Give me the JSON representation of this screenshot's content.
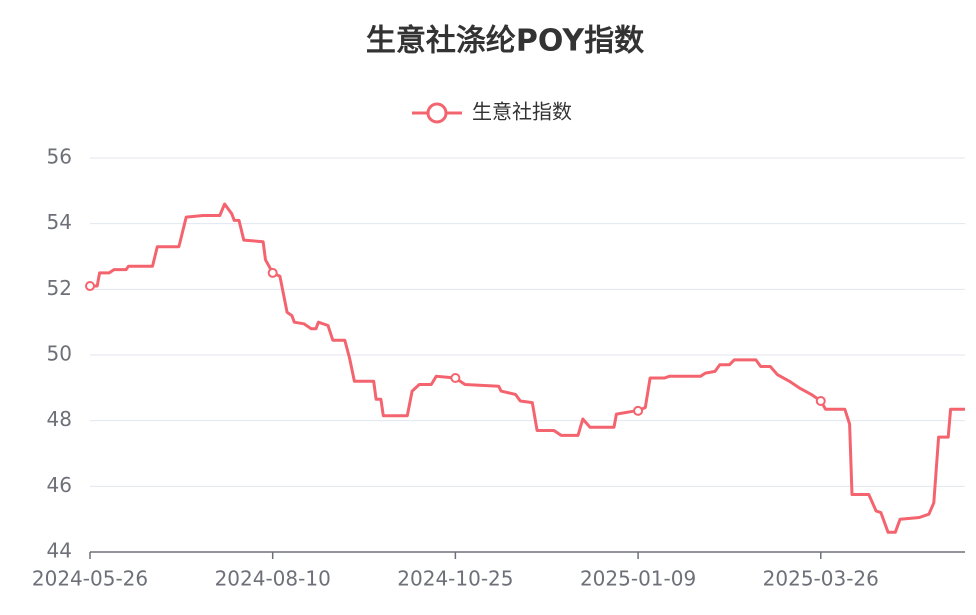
{
  "chart_data": {
    "type": "line",
    "title": "生意社涤纶POY指数",
    "x": [
      "2024-05-26",
      "2024-05-29",
      "2024-05-30",
      "2024-06-03",
      "2024-06-05",
      "2024-06-10",
      "2024-06-11",
      "2024-06-21",
      "2024-06-23",
      "2024-07-02",
      "2024-07-05",
      "2024-07-12",
      "2024-07-19",
      "2024-07-21",
      "2024-07-24",
      "2024-07-25",
      "2024-07-27",
      "2024-07-29",
      "2024-08-06",
      "2024-08-07",
      "2024-08-10",
      "2024-08-13",
      "2024-08-16",
      "2024-08-18",
      "2024-08-19",
      "2024-08-23",
      "2024-08-26",
      "2024-08-28",
      "2024-08-29",
      "2024-09-02",
      "2024-09-04",
      "2024-09-09",
      "2024-09-11",
      "2024-09-13",
      "2024-09-21",
      "2024-09-22",
      "2024-09-24",
      "2024-09-25",
      "2024-10-05",
      "2024-10-07",
      "2024-10-10",
      "2024-10-15",
      "2024-10-17",
      "2024-10-25",
      "2024-10-29",
      "2024-11-12",
      "2024-11-13",
      "2024-11-19",
      "2024-11-21",
      "2024-11-26",
      "2024-11-28",
      "2024-12-05",
      "2024-12-08",
      "2024-12-15",
      "2024-12-17",
      "2024-12-20",
      "2024-12-30",
      "2024-12-31",
      "2025-01-08",
      "2025-01-09",
      "2025-01-12",
      "2025-01-14",
      "2025-01-20",
      "2025-01-22",
      "2025-02-04",
      "2025-02-06",
      "2025-02-10",
      "2025-02-12",
      "2025-02-16",
      "2025-02-18",
      "2025-02-27",
      "2025-03-01",
      "2025-03-05",
      "2025-03-08",
      "2025-03-13",
      "2025-03-17",
      "2025-03-22",
      "2025-03-26",
      "2025-03-28",
      "2025-04-05",
      "2025-04-07",
      "2025-04-08",
      "2025-04-15",
      "2025-04-18",
      "2025-04-20",
      "2025-04-23",
      "2025-04-26",
      "2025-04-28",
      "2025-05-06",
      "2025-05-10",
      "2025-05-12",
      "2025-05-14",
      "2025-05-18",
      "2025-05-19",
      "2025-05-25"
    ],
    "series": [
      {
        "name": "生意社指数",
        "color": "#f4646f",
        "values": [
          52.1,
          52.1,
          52.5,
          52.5,
          52.6,
          52.6,
          52.7,
          52.7,
          53.3,
          53.3,
          54.2,
          54.25,
          54.25,
          54.6,
          54.3,
          54.1,
          54.1,
          53.5,
          53.45,
          52.9,
          52.5,
          52.4,
          51.3,
          51.2,
          51.0,
          50.95,
          50.8,
          50.8,
          51.0,
          50.9,
          50.45,
          50.45,
          49.9,
          49.2,
          49.2,
          48.65,
          48.65,
          48.15,
          48.15,
          48.9,
          49.1,
          49.1,
          49.35,
          49.3,
          49.1,
          49.05,
          48.9,
          48.8,
          48.6,
          48.55,
          47.7,
          47.7,
          47.55,
          47.55,
          48.05,
          47.8,
          47.8,
          48.2,
          48.3,
          48.3,
          48.4,
          49.3,
          49.3,
          49.35,
          49.35,
          49.45,
          49.5,
          49.7,
          49.7,
          49.85,
          49.85,
          49.65,
          49.65,
          49.4,
          49.2,
          49.0,
          48.8,
          48.6,
          48.35,
          48.35,
          47.9,
          45.75,
          45.75,
          45.25,
          45.2,
          44.6,
          44.6,
          45.0,
          45.05,
          45.15,
          45.5,
          47.5,
          47.5,
          48.35,
          48.35
        ]
      }
    ],
    "xlim": [
      "2024-05-26",
      "2025-05-25"
    ],
    "xticks": [
      "2024-05-26",
      "2024-08-10",
      "2024-10-25",
      "2025-01-09",
      "2025-03-26"
    ],
    "ylim": [
      44,
      56
    ],
    "yticks": [
      44,
      46,
      48,
      50,
      52,
      54,
      56
    ],
    "grid": true
  }
}
